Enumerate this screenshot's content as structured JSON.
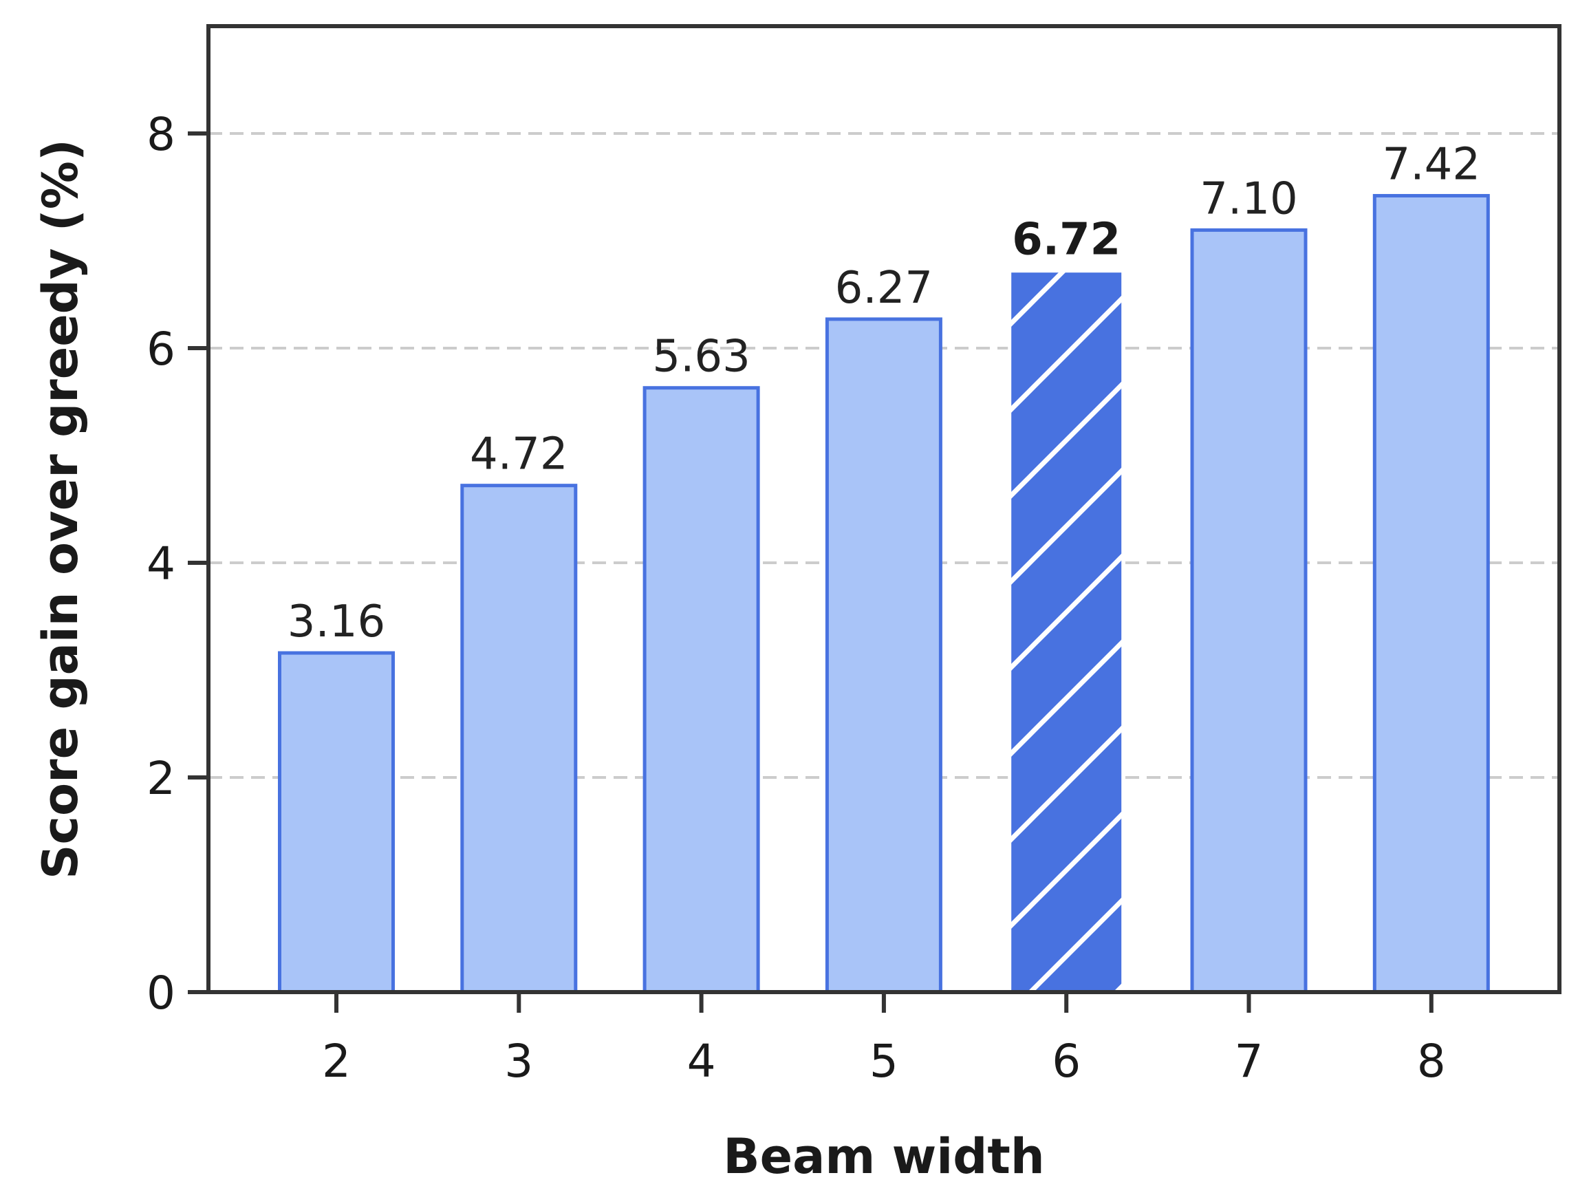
{
  "chart_data": {
    "type": "bar",
    "xlabel": "Beam width",
    "ylabel": "Score gain over greedy (%)",
    "categories": [
      "2",
      "3",
      "4",
      "5",
      "6",
      "7",
      "8"
    ],
    "values": [
      3.16,
      4.72,
      5.63,
      6.27,
      6.72,
      7.1,
      7.42
    ],
    "value_labels": [
      "3.16",
      "4.72",
      "5.63",
      "6.27",
      "6.72",
      "7.10",
      "7.42"
    ],
    "highlighted_category": "6",
    "highlight_style": "hatched",
    "ylim": [
      0,
      9
    ],
    "yticks": [
      0,
      2,
      4,
      6,
      8
    ],
    "ytick_labels": [
      "0",
      "2",
      "4",
      "6",
      "8"
    ],
    "grid": "y-dashed",
    "legend": "none",
    "colors": {
      "bar_fill": "#a9c4f8",
      "bar_edge": "#4872e0",
      "highlight_fill": "#4872e0",
      "hatch": "#ffffff",
      "grid": "#cccccc",
      "axes": "#333333"
    }
  }
}
